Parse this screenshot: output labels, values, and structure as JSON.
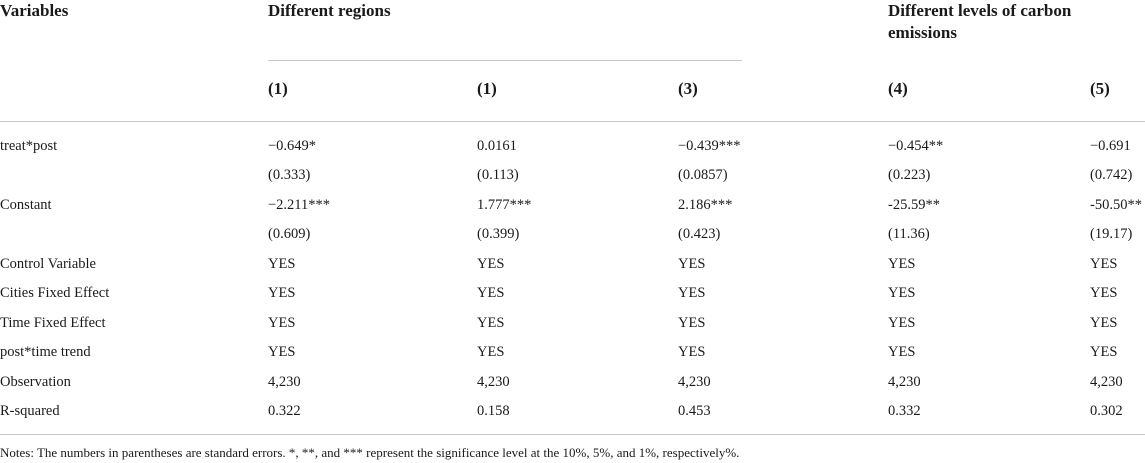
{
  "header": {
    "variables": "Variables",
    "group1": "Different regions",
    "group2": "Different levels of carbon emissions",
    "columns": [
      "(1)",
      "(1)",
      "(3)",
      "(4)",
      "(5)"
    ]
  },
  "rows": [
    {
      "label": "treat*post",
      "values": [
        "−0.649*",
        "0.0161",
        "−0.439***",
        "−0.454**",
        "−0.691"
      ]
    },
    {
      "label": "",
      "values": [
        "(0.333)",
        "(0.113)",
        "(0.0857)",
        "(0.223)",
        "(0.742)"
      ]
    },
    {
      "label": "Constant",
      "values": [
        "−2.211***",
        "1.777***",
        "2.186***",
        "-25.59**",
        "-50.50**"
      ]
    },
    {
      "label": "",
      "values": [
        "(0.609)",
        "(0.399)",
        "(0.423)",
        "(11.36)",
        "(19.17)"
      ]
    },
    {
      "label": "Control Variable",
      "values": [
        "YES",
        "YES",
        "YES",
        "YES",
        "YES"
      ]
    },
    {
      "label": "Cities Fixed Effect",
      "values": [
        "YES",
        "YES",
        "YES",
        "YES",
        "YES"
      ]
    },
    {
      "label": "Time Fixed Effect",
      "values": [
        "YES",
        "YES",
        "YES",
        "YES",
        "YES"
      ]
    },
    {
      "label": "post*time trend",
      "values": [
        "YES",
        "YES",
        "YES",
        "YES",
        "YES"
      ]
    },
    {
      "label": "Observation",
      "values": [
        "4,230",
        "4,230",
        "4,230",
        "4,230",
        "4,230"
      ]
    },
    {
      "label": "R-squared",
      "values": [
        "0.322",
        "0.158",
        "0.453",
        "0.332",
        "0.302"
      ]
    }
  ],
  "note": "Notes: The numbers in parentheses are standard errors. *, **, and *** represent the significance level at the 10%, 5%, and 1%, respectively%."
}
